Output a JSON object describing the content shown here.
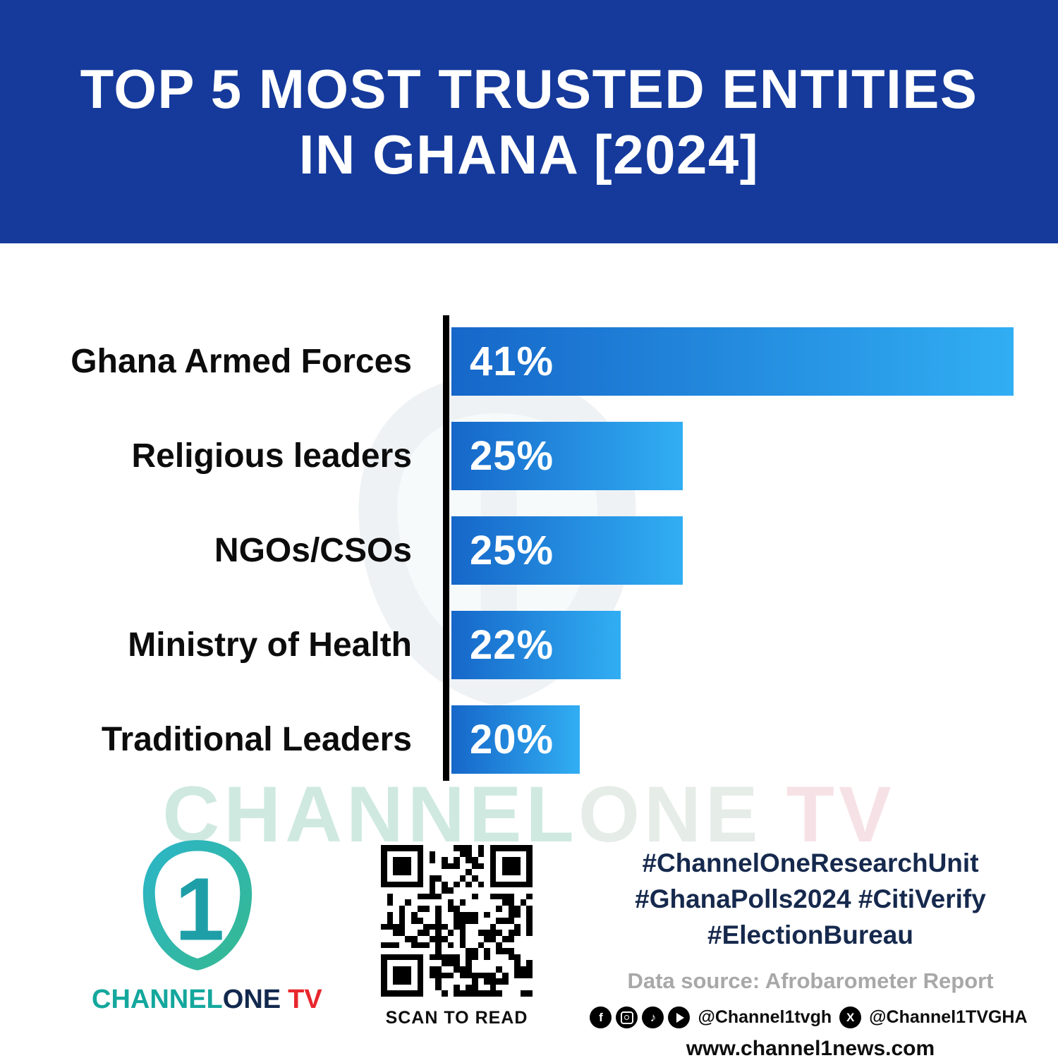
{
  "header": {
    "title_line1": "TOP 5 MOST TRUSTED ENTITIES",
    "title_line2": "IN GHANA [2024]"
  },
  "chart_data": {
    "type": "bar",
    "orientation": "horizontal",
    "title": "TOP 5 MOST TRUSTED ENTITIES IN GHANA [2024]",
    "categories": [
      "Ghana Armed Forces",
      "Religious leaders",
      "NGOs/CSOs",
      "Ministry of Health",
      "Traditional Leaders"
    ],
    "values": [
      41,
      25,
      25,
      22,
      20
    ],
    "value_suffix": "%",
    "xlabel": "",
    "ylabel": "",
    "xlim": [
      0,
      41
    ],
    "grid": false,
    "legend": false,
    "bar_gradient": [
      "#1667c9",
      "#31aef3"
    ],
    "axis_color": "#000000"
  },
  "watermark": {
    "part1": "CHANNEL",
    "part2": "ONE",
    "part3": "TV"
  },
  "footer": {
    "logo": {
      "numeral": "1",
      "brand_part1": "CHANNEL",
      "brand_part2": "ONE",
      "brand_part3": "TV"
    },
    "qr_caption": "SCAN TO READ",
    "hashtags": [
      "#ChannelOneResearchUnit",
      "#GhanaPolls2024 #CitiVerify",
      "#ElectionBureau"
    ],
    "data_source": "Data source: Afrobarometer Report",
    "social": {
      "handle1": "@Channel1tvgh",
      "handle2": "@Channel1TVGHA",
      "x_glyph": "X",
      "facebook_glyph": "f",
      "tiktok_glyph": "♪"
    },
    "website": "www.channel1news.com"
  },
  "colors": {
    "header_bg": "#153a9b",
    "bar_start": "#1667c9",
    "bar_end": "#31aef3",
    "brand_teal": "#14a79d",
    "brand_navy": "#12294e",
    "brand_red": "#e8262d",
    "hashtag_color": "#16294d",
    "source_gray": "#a8a8a8",
    "watermark_teal": "#cfe9e1",
    "watermark_pink": "#f6e2e6"
  }
}
